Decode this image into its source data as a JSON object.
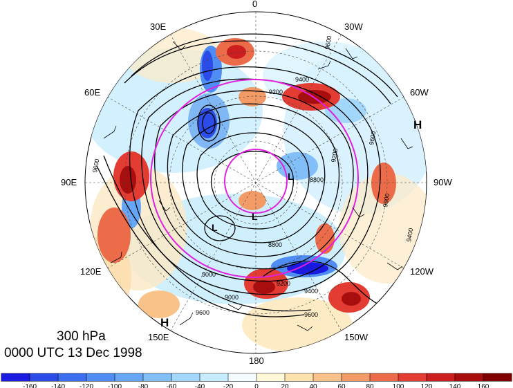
{
  "map": {
    "level": "300 hPa",
    "datetime": "0000 UTC 13 Dec 1998",
    "longitude_labels": [
      "0",
      "30W",
      "60W",
      "90W",
      "120W",
      "150W",
      "180",
      "150E",
      "120E",
      "90E",
      "60E",
      "30E"
    ],
    "pressure_systems": [
      "H",
      "H",
      "L",
      "L",
      "L"
    ],
    "contour_labels": [
      "9400",
      "9200",
      "9600",
      "9600",
      "9200",
      "9600",
      "9800",
      "9000",
      "9200",
      "9400",
      "9600",
      "9000",
      "8800",
      "8800",
      "9400",
      "9600"
    ],
    "colors": {
      "contour": "#000000",
      "circles": "#e020e0",
      "ocean_fill": "#ffffff"
    },
    "colorbar": {
      "ticks": [
        "-160",
        "-140",
        "-120",
        "-100",
        "-80",
        "-60",
        "-40",
        "-20",
        "0",
        "20",
        "40",
        "60",
        "80",
        "100",
        "120",
        "140",
        "160"
      ],
      "colors": [
        "#1a1ae0",
        "#2c4ce8",
        "#3c6ff0",
        "#4f8df4",
        "#66a6f6",
        "#82bff8",
        "#a3d6fb",
        "#c6ecfd",
        "#f4fcff",
        "#fff8d8",
        "#fde2ae",
        "#f9c288",
        "#f39b66",
        "#ec6c4a",
        "#e23c33",
        "#cc1e1e",
        "#a80e0e",
        "#800000"
      ]
    }
  }
}
